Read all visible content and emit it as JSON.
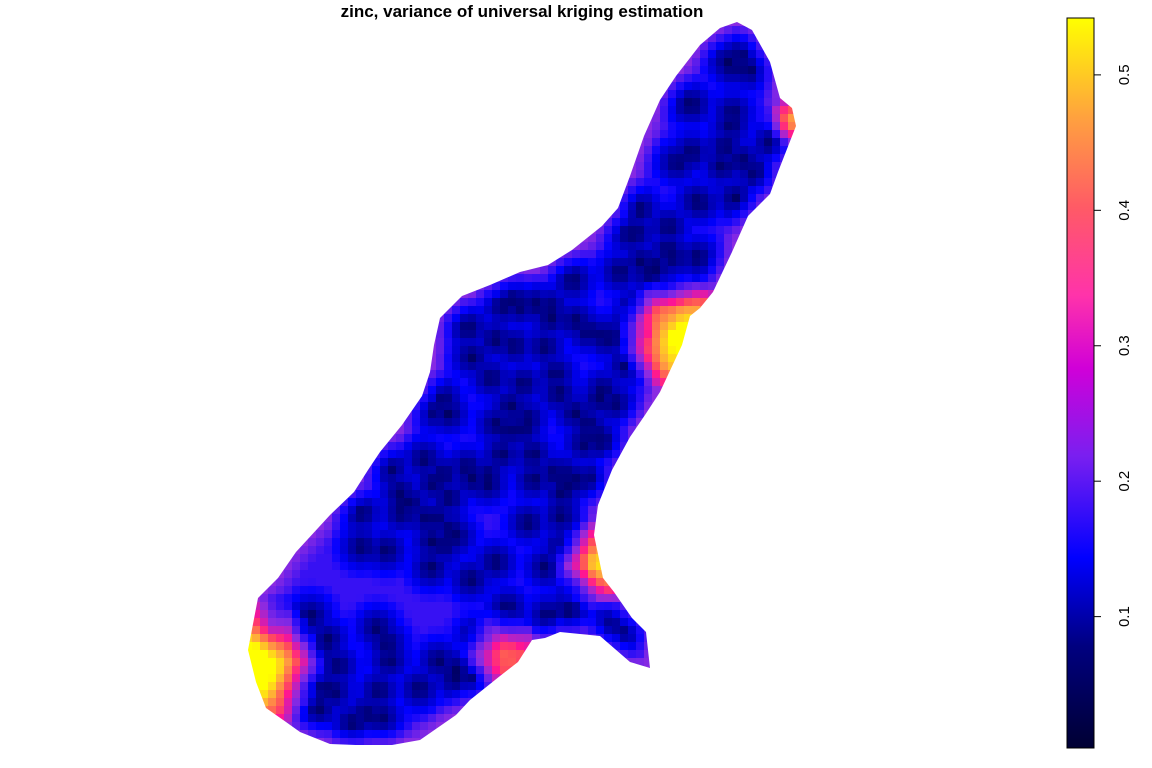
{
  "chart_data": {
    "type": "heatmap",
    "title": "zinc, variance of universal kriging estimation",
    "xlabel": "",
    "ylabel": "",
    "axes_shown": false,
    "grid": false,
    "legend": "colorbar right, vertical tick labels",
    "colorbar": {
      "ticks": [
        {
          "value": 0.1,
          "label": "0.1"
        },
        {
          "value": 0.2,
          "label": "0.2"
        },
        {
          "value": 0.3,
          "label": "0.3"
        },
        {
          "value": 0.4,
          "label": "0.4"
        },
        {
          "value": 0.5,
          "label": "0.5"
        }
      ],
      "zlim": [
        0.003,
        0.542
      ]
    },
    "colorscale": [
      "#000033",
      "#0000FF",
      "#8A2BE2",
      "#FF1493",
      "#FF4E5A",
      "#FFA040",
      "#FFFF00"
    ],
    "zrange_in_map": [
      0.01,
      0.54
    ],
    "high_variance_areas": [
      "left lower tip",
      "right middle edge",
      "right edge near spur"
    ]
  }
}
